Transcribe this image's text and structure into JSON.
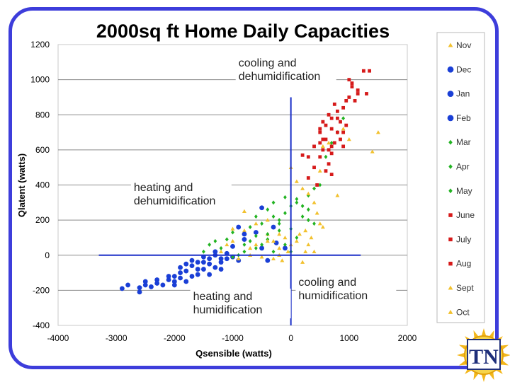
{
  "chart_data": {
    "type": "scatter",
    "title": "2000sq ft Home Daily Capacities",
    "xlabel": "Qsensible  (watts)",
    "ylabel": "Qlatent  (watts)",
    "xlim": [
      -4000,
      2000
    ],
    "ylim": [
      -400,
      1200
    ],
    "x_ticks": [
      "-4000",
      "-3000",
      "-2000",
      "-1000",
      "0",
      "1000",
      "2000"
    ],
    "y_ticks": [
      "-400",
      "-200",
      "0",
      "200",
      "400",
      "600",
      "800",
      "1000",
      "1200"
    ],
    "grid": "horizontal",
    "legend_position": "right",
    "quadrant_lines": {
      "vertical_x": 0,
      "vertical_y_range": [
        -400,
        900
      ],
      "horizontal_y": 0,
      "horizontal_x_range": [
        -3300,
        1200
      ]
    },
    "annotations": [
      {
        "lines": [
          "cooling and",
          "dehumidification"
        ],
        "x": -900,
        "y": 1075
      },
      {
        "lines": [
          "heating and",
          "dehumidification"
        ],
        "x": -2700,
        "y": 365
      },
      {
        "lines": [
          "heating and",
          "humidification"
        ],
        "x": -1680,
        "y": -255
      },
      {
        "lines": [
          "cooling and",
          "humidification"
        ],
        "x": 130,
        "y": -175
      }
    ],
    "series": [
      {
        "name": "Nov",
        "marker": "triangle",
        "color": "#f2c12e",
        "points": [
          [
            -1000,
            80
          ],
          [
            -800,
            140
          ],
          [
            -600,
            60
          ],
          [
            -400,
            120
          ],
          [
            -300,
            -20
          ],
          [
            -200,
            40
          ],
          [
            -100,
            100
          ],
          [
            -50,
            20
          ],
          [
            100,
            80
          ],
          [
            200,
            -40
          ],
          [
            250,
            140
          ],
          [
            300,
            60
          ],
          [
            400,
            20
          ],
          [
            500,
            180
          ],
          [
            -1200,
            20
          ],
          [
            -700,
            0
          ]
        ]
      },
      {
        "name": "Dec",
        "marker": "circle",
        "color": "#1a3fd6",
        "points": [
          [
            -2900,
            -190
          ],
          [
            -2800,
            -170
          ],
          [
            -2600,
            -185
          ],
          [
            -2500,
            -150
          ],
          [
            -2300,
            -160
          ],
          [
            -2100,
            -140
          ],
          [
            -2000,
            -120
          ],
          [
            -1900,
            -100
          ],
          [
            -1800,
            -150
          ],
          [
            -1700,
            -60
          ],
          [
            -1600,
            -80
          ],
          [
            -1500,
            -40
          ],
          [
            -1400,
            -110
          ],
          [
            -1300,
            -70
          ],
          [
            -1200,
            -20
          ],
          [
            -1100,
            10
          ],
          [
            -900,
            -30
          ]
        ]
      },
      {
        "name": "Jan",
        "marker": "circle",
        "color": "#1a3fd6",
        "points": [
          [
            -2600,
            -210
          ],
          [
            -2400,
            -180
          ],
          [
            -2200,
            -170
          ],
          [
            -2000,
            -150
          ],
          [
            -1900,
            -130
          ],
          [
            -1800,
            -90
          ],
          [
            -1700,
            -120
          ],
          [
            -1600,
            -40
          ],
          [
            -1500,
            -10
          ],
          [
            -1400,
            -50
          ],
          [
            -1300,
            0
          ],
          [
            -1200,
            -40
          ],
          [
            -1100,
            -20
          ],
          [
            -1000,
            50
          ],
          [
            -800,
            120
          ],
          [
            -500,
            40
          ],
          [
            -400,
            -30
          ]
        ]
      },
      {
        "name": "Feb",
        "marker": "circle",
        "color": "#1a3fd6",
        "points": [
          [
            -2500,
            -170
          ],
          [
            -2300,
            -140
          ],
          [
            -2100,
            -120
          ],
          [
            -2000,
            -170
          ],
          [
            -1900,
            -70
          ],
          [
            -1800,
            -50
          ],
          [
            -1700,
            -30
          ],
          [
            -1600,
            -110
          ],
          [
            -1500,
            -80
          ],
          [
            -1400,
            -20
          ],
          [
            -1300,
            20
          ],
          [
            -1200,
            -80
          ],
          [
            -1000,
            -10
          ],
          [
            -900,
            160
          ],
          [
            -800,
            90
          ],
          [
            -600,
            130
          ],
          [
            -500,
            270
          ],
          [
            -300,
            160
          ],
          [
            -250,
            70
          ],
          [
            -100,
            40
          ]
        ]
      },
      {
        "name": "Mar",
        "marker": "diamond",
        "color": "#22b322",
        "points": [
          [
            -1500,
            20
          ],
          [
            -1400,
            60
          ],
          [
            -1200,
            40
          ],
          [
            -1100,
            90
          ],
          [
            -1000,
            -10
          ],
          [
            -900,
            0
          ],
          [
            -800,
            20
          ],
          [
            -700,
            80
          ],
          [
            -600,
            40
          ],
          [
            -500,
            60
          ],
          [
            -400,
            90
          ],
          [
            -300,
            20
          ],
          [
            -200,
            140
          ],
          [
            -100,
            60
          ],
          [
            0,
            20
          ]
        ]
      },
      {
        "name": "Apr",
        "marker": "diamond",
        "color": "#22b322",
        "points": [
          [
            -1300,
            80
          ],
          [
            -1000,
            130
          ],
          [
            -800,
            60
          ],
          [
            -700,
            160
          ],
          [
            -600,
            110
          ],
          [
            -500,
            180
          ],
          [
            -400,
            120
          ],
          [
            -300,
            220
          ],
          [
            -200,
            180
          ],
          [
            -100,
            240
          ],
          [
            0,
            280
          ],
          [
            100,
            300
          ],
          [
            200,
            220
          ],
          [
            300,
            260
          ],
          [
            400,
            180
          ]
        ]
      },
      {
        "name": "May",
        "marker": "diamond",
        "color": "#22b322",
        "points": [
          [
            -600,
            220
          ],
          [
            -400,
            260
          ],
          [
            -300,
            300
          ],
          [
            -200,
            200
          ],
          [
            -100,
            330
          ],
          [
            0,
            150
          ],
          [
            100,
            320
          ],
          [
            200,
            280
          ],
          [
            300,
            340
          ],
          [
            400,
            380
          ],
          [
            500,
            400
          ],
          [
            600,
            560
          ],
          [
            700,
            640
          ],
          [
            800,
            700
          ],
          [
            900,
            780
          ],
          [
            300,
            200
          ],
          [
            100,
            100
          ]
        ]
      },
      {
        "name": "June",
        "marker": "square",
        "color": "#d61a1a",
        "points": [
          [
            300,
            440
          ],
          [
            400,
            500
          ],
          [
            450,
            400
          ],
          [
            500,
            560
          ],
          [
            550,
            600
          ],
          [
            600,
            480
          ],
          [
            650,
            520
          ],
          [
            700,
            580
          ],
          [
            750,
            640
          ],
          [
            800,
            700
          ],
          [
            850,
            660
          ],
          [
            900,
            620
          ],
          [
            950,
            740
          ],
          [
            500,
            640
          ],
          [
            700,
            460
          ]
        ]
      },
      {
        "name": "July",
        "marker": "square",
        "color": "#d61a1a",
        "points": [
          [
            500,
            700
          ],
          [
            550,
            760
          ],
          [
            600,
            660
          ],
          [
            650,
            800
          ],
          [
            700,
            720
          ],
          [
            750,
            860
          ],
          [
            800,
            780
          ],
          [
            900,
            840
          ],
          [
            1000,
            900
          ],
          [
            1050,
            960
          ],
          [
            1100,
            880
          ],
          [
            1150,
            940
          ],
          [
            1250,
            1050
          ],
          [
            1350,
            1050
          ],
          [
            700,
            620
          ]
        ]
      },
      {
        "name": "Aug",
        "marker": "square",
        "color": "#d61a1a",
        "points": [
          [
            200,
            570
          ],
          [
            300,
            560
          ],
          [
            400,
            620
          ],
          [
            500,
            720
          ],
          [
            550,
            660
          ],
          [
            600,
            740
          ],
          [
            650,
            600
          ],
          [
            700,
            780
          ],
          [
            800,
            820
          ],
          [
            850,
            760
          ],
          [
            900,
            700
          ],
          [
            950,
            880
          ],
          [
            1000,
            1000
          ],
          [
            1050,
            980
          ],
          [
            1150,
            920
          ],
          [
            1300,
            920
          ]
        ]
      },
      {
        "name": "Sept",
        "marker": "triangle",
        "color": "#f2c12e",
        "points": [
          [
            -1000,
            150
          ],
          [
            -800,
            250
          ],
          [
            -600,
            180
          ],
          [
            -400,
            80
          ],
          [
            -200,
            120
          ],
          [
            0,
            500
          ],
          [
            100,
            420
          ],
          [
            200,
            380
          ],
          [
            300,
            350
          ],
          [
            400,
            300
          ],
          [
            500,
            480
          ],
          [
            550,
            620
          ],
          [
            650,
            640
          ],
          [
            800,
            340
          ],
          [
            900,
            720
          ],
          [
            1000,
            660
          ],
          [
            1400,
            590
          ],
          [
            1500,
            700
          ]
        ]
      },
      {
        "name": "Oct",
        "marker": "triangle",
        "color": "#f2c12e",
        "points": [
          [
            -1100,
            60
          ],
          [
            -900,
            -20
          ],
          [
            -700,
            40
          ],
          [
            -500,
            -10
          ],
          [
            -300,
            80
          ],
          [
            -150,
            -30
          ],
          [
            0,
            60
          ],
          [
            150,
            120
          ],
          [
            250,
            20
          ],
          [
            350,
            100
          ],
          [
            450,
            240
          ],
          [
            550,
            160
          ],
          [
            -400,
            200
          ],
          [
            -200,
            0
          ]
        ]
      }
    ]
  },
  "logo": {
    "letters": "TN"
  }
}
